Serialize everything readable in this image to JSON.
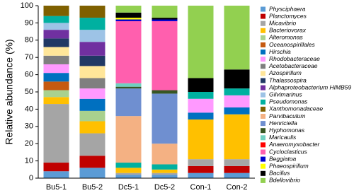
{
  "chart_data": {
    "type": "stacked_bar",
    "ylabel": "Relative abundance (%)",
    "categories": [
      "Bu5-1",
      "Bu5-2",
      "Dc5-1",
      "Dc5-2",
      "Con-1",
      "Con-2"
    ],
    "ylim": [
      0,
      100
    ],
    "yticks": [
      0,
      10,
      20,
      30,
      40,
      50,
      60,
      70,
      80,
      90,
      100
    ],
    "series": [
      {
        "name": "Physciphaera",
        "color": "#5b9bd5",
        "values": [
          4,
          6,
          2,
          2,
          3,
          3
        ]
      },
      {
        "name": "Planctomyces",
        "color": "#c00000",
        "values": [
          5,
          7,
          0,
          0,
          4,
          4
        ]
      },
      {
        "name": "Micavibrio",
        "color": "#a5a5a5",
        "values": [
          34,
          13,
          1,
          1,
          4,
          4
        ]
      },
      {
        "name": "Bacteriovorax",
        "color": "#ffc000",
        "values": [
          4,
          7,
          3,
          2,
          23,
          26
        ]
      },
      {
        "name": "Alteromonas",
        "color": "#a9d18e",
        "values": [
          4,
          6,
          0,
          0,
          0,
          0
        ]
      },
      {
        "name": "Oceanospirillales",
        "color": "#c55a11",
        "values": [
          5,
          0,
          0,
          0,
          0,
          0
        ]
      },
      {
        "name": "Hirschia",
        "color": "#0070c0",
        "values": [
          5,
          7,
          0,
          0,
          4,
          4
        ]
      },
      {
        "name": "Rhodobacteraceae",
        "color": "#ff99ff",
        "values": [
          5,
          6,
          0,
          0,
          8,
          7
        ]
      },
      {
        "name": "Acetobacteraceae",
        "color": "#7f7f7f",
        "values": [
          5,
          6,
          0,
          0,
          0,
          0
        ]
      },
      {
        "name": "Azospirillum",
        "color": "#ffe699",
        "values": [
          5,
          7,
          0,
          0,
          0,
          0
        ]
      },
      {
        "name": "Thalassospira",
        "color": "#203864",
        "values": [
          5,
          6,
          0,
          0,
          0,
          0
        ]
      },
      {
        "name": "Alphaproteobacterium HIMB59",
        "color": "#7030a0",
        "values": [
          5,
          8,
          0,
          0,
          0,
          0
        ]
      },
      {
        "name": "Gilvimarinus",
        "color": "#9dc3e6",
        "values": [
          4,
          7,
          0,
          0,
          0,
          0
        ]
      },
      {
        "name": "Pseudomonas",
        "color": "#00b0a0",
        "values": [
          4,
          7,
          3,
          3,
          4,
          4
        ]
      },
      {
        "name": "Xanthomonadaceae",
        "color": "#7f6000",
        "values": [
          6,
          7,
          0,
          0,
          0,
          0
        ]
      },
      {
        "name": "Parvibaculum",
        "color": "#f4b183",
        "values": [
          0,
          0,
          27,
          12,
          0,
          0
        ]
      },
      {
        "name": "Henriciella",
        "color": "#6f8fd0",
        "values": [
          0,
          0,
          16,
          29,
          0,
          0
        ]
      },
      {
        "name": "Hyphomonas",
        "color": "#375623",
        "values": [
          0,
          0,
          1,
          2,
          0,
          0
        ]
      },
      {
        "name": "Maricaulis",
        "color": "#70d0c0",
        "values": [
          0,
          0,
          2,
          0,
          0,
          0
        ]
      },
      {
        "name": "Anaeromyxobacter",
        "color": "#ff0000",
        "values": [
          0,
          0,
          0,
          0,
          0,
          0
        ]
      },
      {
        "name": "Cycloclasticus",
        "color": "#ff5fae",
        "values": [
          0,
          0,
          36,
          40,
          0,
          0
        ]
      },
      {
        "name": "Beggiatoa",
        "color": "#0000cc",
        "values": [
          0,
          0,
          1,
          1,
          0,
          0
        ]
      },
      {
        "name": "Phaeospirillum",
        "color": "#ffff00",
        "values": [
          0,
          0,
          1,
          0,
          0,
          0
        ]
      },
      {
        "name": "Bacillus",
        "color": "#000000",
        "values": [
          0,
          0,
          3,
          1,
          8,
          11
        ]
      },
      {
        "name": "Bdellovibrio",
        "color": "#92d050",
        "values": [
          0,
          0,
          4,
          7,
          42,
          37
        ]
      }
    ]
  }
}
